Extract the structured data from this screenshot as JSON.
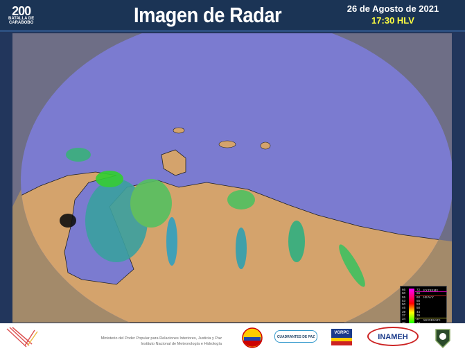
{
  "header": {
    "logo_number": "200",
    "logo_line1": "BATALLA DE",
    "logo_line2": "CARABOBO",
    "title": "Imagen de Radar",
    "date": "26 de Agosto de 2021",
    "time": "17:30 HLV"
  },
  "colors": {
    "header_bg": "#1b3455",
    "radar_area": "#7b7bd0",
    "land": "#d4a36c",
    "outside": "#6a6a80",
    "time_text": "#ffff40"
  },
  "legend": {
    "left_values": [
      "66",
      "60",
      "55",
      "53",
      "50",
      "46",
      "39",
      "37",
      "34",
      "30",
      "25",
      "21",
      "18",
      "14",
      "10",
      "7",
      "2"
    ],
    "right_values": [
      "72",
      "66",
      "60",
      "55",
      "53",
      "50",
      "44",
      "39",
      "37",
      "34",
      "28",
      "26",
      "21",
      "18",
      "14",
      "10",
      "7"
    ],
    "labels": {
      "extreme": "EXTREME",
      "heavy": "HEAVY",
      "moderate": "MODERATE",
      "light": "LIGHT"
    }
  },
  "footer": {
    "line1": "Ministerio del Poder Popular para Relaciones Interiores, Justicia y Paz",
    "line2": "Instituto Nacional de Meteorología e Hidrología",
    "logo_cuadrantes": "CUADRANTES DE PAZ",
    "logo_vgrpc": "VGRPC",
    "logo_inameh": "INAMEH"
  }
}
